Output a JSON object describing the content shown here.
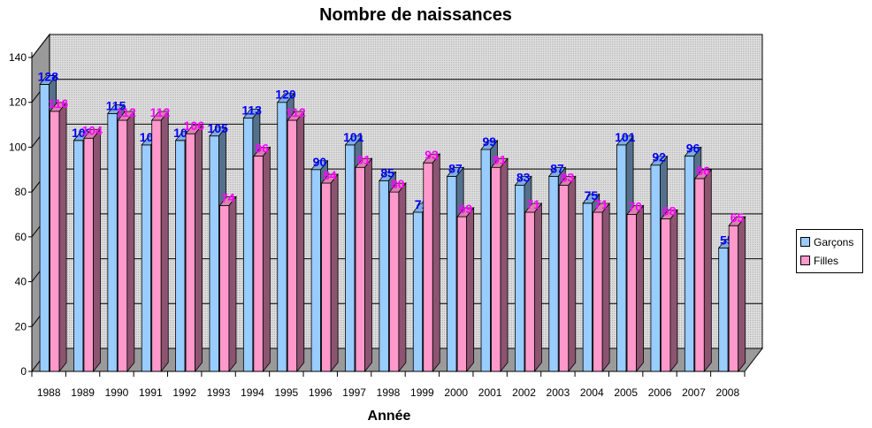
{
  "chart_data": {
    "type": "bar",
    "title": "Nombre de naissances",
    "xlabel": "Année",
    "ylabel": "",
    "ylim": [
      0,
      140
    ],
    "yticks": [
      0,
      20,
      40,
      60,
      80,
      100,
      120,
      140
    ],
    "grid": true,
    "legend_position": "right",
    "categories": [
      "1988",
      "1989",
      "1990",
      "1991",
      "1992",
      "1993",
      "1994",
      "1995",
      "1996",
      "1997",
      "1998",
      "1999",
      "2000",
      "2001",
      "2002",
      "2003",
      "2004",
      "2005",
      "2006",
      "2007",
      "2008"
    ],
    "series": [
      {
        "name": "Garçons",
        "color": "#99ccff",
        "label_color": "#0000ff",
        "values": [
          128,
          103,
          115,
          101,
          103,
          105,
          113,
          120,
          90,
          101,
          85,
          71,
          87,
          99,
          83,
          87,
          75,
          101,
          92,
          96,
          55
        ]
      },
      {
        "name": "Filles",
        "color": "#ff99cc",
        "label_color": "#ff00ff",
        "values": [
          116,
          104,
          112,
          112,
          106,
          74,
          96,
          112,
          84,
          91,
          80,
          93,
          69,
          91,
          71,
          83,
          71,
          70,
          68,
          86,
          65
        ]
      }
    ]
  }
}
